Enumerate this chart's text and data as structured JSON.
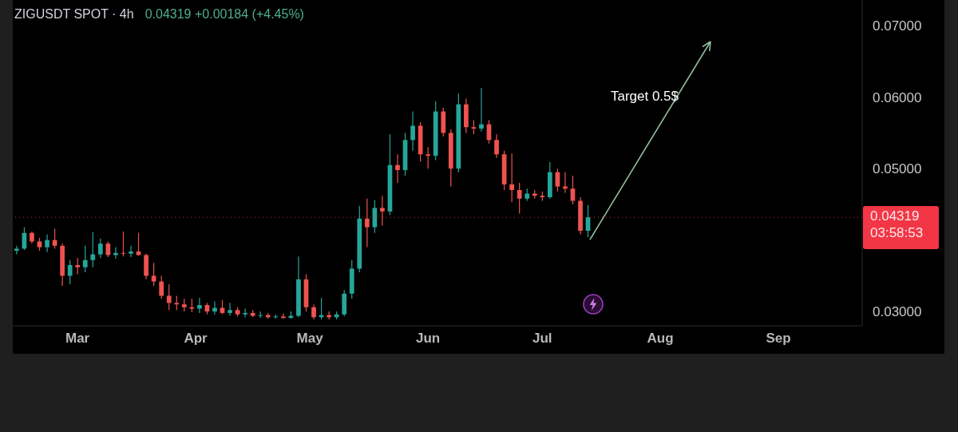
{
  "chart_data": {
    "type": "candlestick",
    "title": "ZIGUSDT SPOT · 4h",
    "subtitle": "0.04319 +0.00184 (+4.45%)",
    "x": [
      "--02-13",
      "--02-15",
      "--02-17",
      "--02-19",
      "--02-21",
      "--02-23",
      "--02-25",
      "--02-27",
      "--03-01",
      "--03-03",
      "--03-05",
      "--03-07",
      "--03-09",
      "--03-11",
      "--03-13",
      "--03-15",
      "--03-17",
      "--03-19",
      "--03-21",
      "--03-23",
      "--03-25",
      "--03-27",
      "--03-29",
      "--03-31",
      "--04-02",
      "--04-04",
      "--04-06",
      "--04-08",
      "--04-10",
      "--04-12",
      "--04-14",
      "--04-16",
      "--04-18",
      "--04-20",
      "--04-22",
      "--04-24",
      "--04-26",
      "--04-28",
      "--04-30",
      "--05-02",
      "--05-04",
      "--05-06",
      "--05-08",
      "--05-10",
      "--05-12",
      "--05-14",
      "--05-16",
      "--05-18",
      "--05-20",
      "--05-22",
      "--05-24",
      "--05-26",
      "--05-28",
      "--05-30",
      "--06-01",
      "--06-03",
      "--06-05",
      "--06-07",
      "--06-09",
      "--06-11",
      "--06-13",
      "--06-15",
      "--06-17",
      "--06-19",
      "--06-21",
      "--06-23",
      "--06-25",
      "--06-27",
      "--06-29",
      "--07-01",
      "--07-03",
      "--07-05",
      "--07-07",
      "--07-09",
      "--07-11",
      "--07-13"
    ],
    "ohlc": [
      [
        0.0385,
        0.0392,
        0.038,
        0.0388
      ],
      [
        0.0388,
        0.0418,
        0.0386,
        0.041
      ],
      [
        0.041,
        0.0412,
        0.0395,
        0.0398
      ],
      [
        0.0398,
        0.0403,
        0.0385,
        0.039
      ],
      [
        0.039,
        0.0408,
        0.0383,
        0.04
      ],
      [
        0.04,
        0.0416,
        0.0388,
        0.0392
      ],
      [
        0.0392,
        0.0395,
        0.0336,
        0.035
      ],
      [
        0.035,
        0.0372,
        0.0338,
        0.0365
      ],
      [
        0.0365,
        0.0375,
        0.0352,
        0.0362
      ],
      [
        0.0362,
        0.0392,
        0.0355,
        0.0372
      ],
      [
        0.0372,
        0.0411,
        0.0362,
        0.038
      ],
      [
        0.038,
        0.0402,
        0.0375,
        0.0395
      ],
      [
        0.0395,
        0.0398,
        0.0376,
        0.0379
      ],
      [
        0.0379,
        0.039,
        0.0374,
        0.0382
      ],
      [
        0.0382,
        0.0412,
        0.0377,
        0.0381
      ],
      [
        0.0381,
        0.0392,
        0.0376,
        0.0384
      ],
      [
        0.0384,
        0.041,
        0.0378,
        0.0379
      ],
      [
        0.0379,
        0.0381,
        0.0345,
        0.035
      ],
      [
        0.035,
        0.0368,
        0.0336,
        0.0342
      ],
      [
        0.0342,
        0.035,
        0.0318,
        0.0322
      ],
      [
        0.0322,
        0.0338,
        0.0302,
        0.0312
      ],
      [
        0.0312,
        0.0322,
        0.0302,
        0.031
      ],
      [
        0.031,
        0.0318,
        0.03,
        0.0306
      ],
      [
        0.0306,
        0.0318,
        0.0299,
        0.0304
      ],
      [
        0.0304,
        0.0319,
        0.0298,
        0.0309
      ],
      [
        0.0309,
        0.0312,
        0.0296,
        0.03
      ],
      [
        0.03,
        0.0314,
        0.0296,
        0.0305
      ],
      [
        0.0305,
        0.0316,
        0.0296,
        0.0298
      ],
      [
        0.0298,
        0.0312,
        0.0294,
        0.0302
      ],
      [
        0.0302,
        0.0306,
        0.0293,
        0.0296
      ],
      [
        0.0296,
        0.0304,
        0.0292,
        0.0298
      ],
      [
        0.0298,
        0.0302,
        0.0292,
        0.0294
      ],
      [
        0.0294,
        0.03,
        0.0291,
        0.0295
      ],
      [
        0.0295,
        0.0298,
        0.029,
        0.0292
      ],
      [
        0.0292,
        0.0296,
        0.029,
        0.0293
      ],
      [
        0.0293,
        0.0297,
        0.029,
        0.0291
      ],
      [
        0.0291,
        0.03,
        0.029,
        0.0294
      ],
      [
        0.0294,
        0.0377,
        0.0292,
        0.0345
      ],
      [
        0.0345,
        0.0352,
        0.03,
        0.0306
      ],
      [
        0.0306,
        0.031,
        0.0289,
        0.0292
      ],
      [
        0.0292,
        0.0319,
        0.0289,
        0.0295
      ],
      [
        0.0295,
        0.03,
        0.0289,
        0.0292
      ],
      [
        0.0292,
        0.03,
        0.0289,
        0.0296
      ],
      [
        0.0296,
        0.033,
        0.0293,
        0.0325
      ],
      [
        0.0325,
        0.0372,
        0.0318,
        0.036
      ],
      [
        0.036,
        0.0448,
        0.0355,
        0.043
      ],
      [
        0.043,
        0.0458,
        0.039,
        0.0418
      ],
      [
        0.0418,
        0.0456,
        0.041,
        0.0445
      ],
      [
        0.0445,
        0.0462,
        0.042,
        0.044
      ],
      [
        0.044,
        0.0548,
        0.0435,
        0.0505
      ],
      [
        0.0505,
        0.052,
        0.048,
        0.0498
      ],
      [
        0.0498,
        0.055,
        0.049,
        0.054
      ],
      [
        0.054,
        0.058,
        0.0525,
        0.056
      ],
      [
        0.056,
        0.0565,
        0.051,
        0.052
      ],
      [
        0.052,
        0.053,
        0.05,
        0.0518
      ],
      [
        0.0518,
        0.0594,
        0.0512,
        0.058
      ],
      [
        0.058,
        0.0585,
        0.0545,
        0.055
      ],
      [
        0.055,
        0.0555,
        0.0475,
        0.05
      ],
      [
        0.05,
        0.0605,
        0.0495,
        0.059
      ],
      [
        0.059,
        0.0598,
        0.055,
        0.0558
      ],
      [
        0.0558,
        0.0568,
        0.0548,
        0.0556
      ],
      [
        0.0556,
        0.0613,
        0.0552,
        0.0562
      ],
      [
        0.0562,
        0.0568,
        0.0535,
        0.054
      ],
      [
        0.054,
        0.0548,
        0.0515,
        0.052
      ],
      [
        0.052,
        0.0525,
        0.047,
        0.0478
      ],
      [
        0.0478,
        0.0521,
        0.0453,
        0.047
      ],
      [
        0.047,
        0.048,
        0.0437,
        0.0458
      ],
      [
        0.0458,
        0.0472,
        0.0455,
        0.0465
      ],
      [
        0.0465,
        0.047,
        0.0458,
        0.0462
      ],
      [
        0.0462,
        0.0468,
        0.0455,
        0.046
      ],
      [
        0.046,
        0.0509,
        0.0458,
        0.0495
      ],
      [
        0.0495,
        0.05,
        0.0468,
        0.0475
      ],
      [
        0.0475,
        0.0495,
        0.0466,
        0.0472
      ],
      [
        0.0472,
        0.049,
        0.045,
        0.0455
      ],
      [
        0.0455,
        0.046,
        0.0408,
        0.0413
      ],
      [
        0.0413,
        0.0449,
        0.0404,
        0.04319
      ]
    ],
    "colors": [
      "#26a69a",
      "#26a69a",
      "#ef5350",
      "#ef5350",
      "#26a69a",
      "#ef5350",
      "#ef5350",
      "#26a69a",
      "#ef5350",
      "#26a69a",
      "#26a69a",
      "#26a69a",
      "#ef5350",
      "#26a69a",
      "#ef5350",
      "#26a69a",
      "#ef5350",
      "#ef5350",
      "#ef5350",
      "#ef5350",
      "#ef5350",
      "#ef5350",
      "#ef5350",
      "#ef5350",
      "#26a69a",
      "#ef5350",
      "#26a69a",
      "#ef5350",
      "#26a69a",
      "#ef5350",
      "#26a69a",
      "#ef5350",
      "#26a69a",
      "#ef5350",
      "#26a69a",
      "#ef5350",
      "#26a69a",
      "#26a69a",
      "#ef5350",
      "#ef5350",
      "#26a69a",
      "#ef5350",
      "#26a69a",
      "#26a69a",
      "#26a69a",
      "#26a69a",
      "#ef5350",
      "#26a69a",
      "#ef5350",
      "#26a69a",
      "#ef5350",
      "#26a69a",
      "#26a69a",
      "#ef5350",
      "#ef5350",
      "#26a69a",
      "#ef5350",
      "#ef5350",
      "#26a69a",
      "#ef5350",
      "#ef5350",
      "#26a69a",
      "#ef5350",
      "#ef5350",
      "#ef5350",
      "#ef5350",
      "#ef5350",
      "#26a69a",
      "#ef5350",
      "#ef5350",
      "#26a69a",
      "#ef5350",
      "#ef5350",
      "#ef5350",
      "#ef5350",
      "#26a69a"
    ],
    "xlim": [
      "--02-12",
      "--09-23"
    ],
    "xticks": [
      {
        "value": "--03-01",
        "label": "Mar"
      },
      {
        "value": "--04-01",
        "label": "Apr"
      },
      {
        "value": "--05-01",
        "label": "May"
      },
      {
        "value": "--06-01",
        "label": "Jun"
      },
      {
        "value": "--07-01",
        "label": "Jul"
      },
      {
        "value": "--08-01",
        "label": "Aug"
      },
      {
        "value": "--09-01",
        "label": "Sep"
      }
    ],
    "ylim": [
      0.028,
      0.0736
    ],
    "yticks": [
      {
        "value": 0.03,
        "label": "0.03000"
      },
      {
        "value": 0.05,
        "label": "0.05000"
      },
      {
        "value": 0.06,
        "label": "0.06000"
      },
      {
        "value": 0.07,
        "label": "0.07000"
      }
    ],
    "ref_lines": [
      {
        "axis": "y",
        "value": 0.04319,
        "label": "0.04319",
        "color": "#f23645",
        "line_style": "dotted"
      }
    ],
    "annotations": [
      "03:58:53",
      "Target 0.5$"
    ]
  }
}
